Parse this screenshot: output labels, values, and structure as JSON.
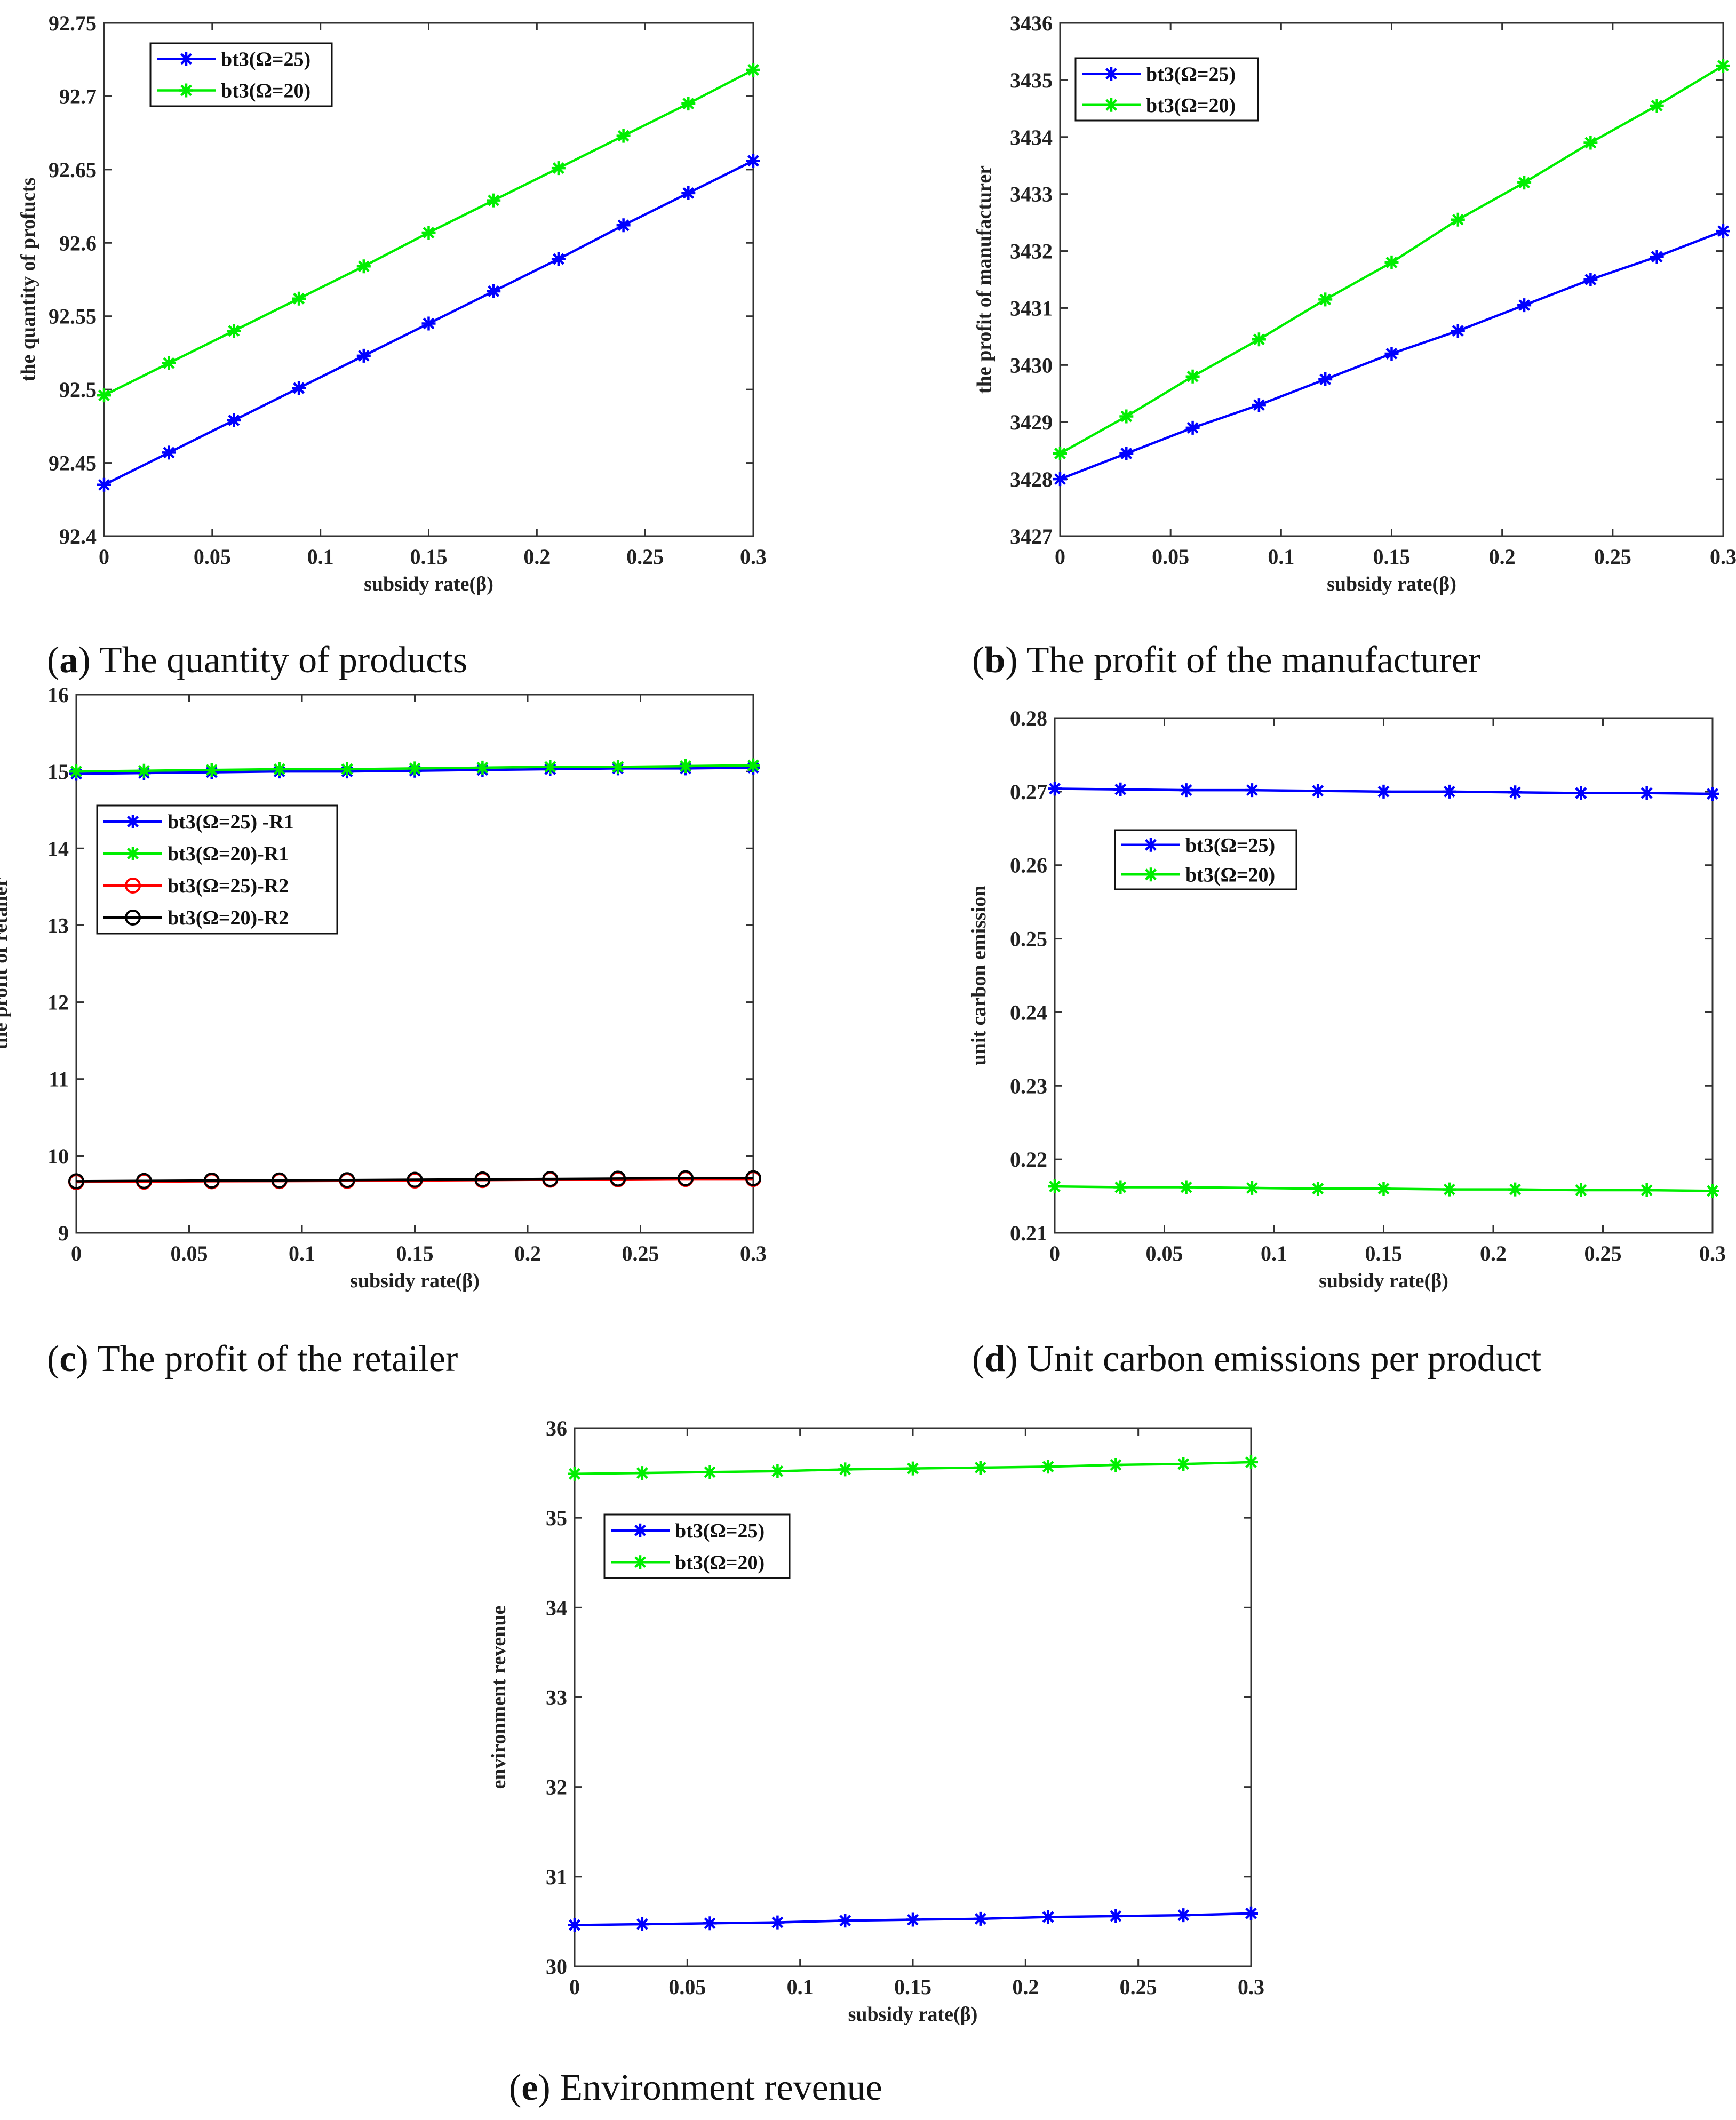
{
  "colors": {
    "blue": "#0000ff",
    "green": "#00ee00",
    "red": "#ff0000",
    "black": "#000000",
    "axis": "#333333"
  },
  "chart_data": [
    {
      "id": "a",
      "type": "line",
      "caption_letter": "a",
      "caption_text": "The quantity of products",
      "xlabel": "subsidy rate(β)",
      "ylabel": "the quantity of profucts",
      "x": [
        0,
        0.03,
        0.06,
        0.09,
        0.12,
        0.15,
        0.18,
        0.21,
        0.24,
        0.27,
        0.3
      ],
      "xlim": [
        0,
        0.3
      ],
      "ylim": [
        92.4,
        92.75
      ],
      "xticks": [
        0,
        0.05,
        0.1,
        0.15,
        0.2,
        0.25,
        0.3
      ],
      "xtick_labels": [
        "0",
        "0.05",
        "0.1",
        "0.15",
        "0.2",
        "0.25",
        "0.3"
      ],
      "yticks": [
        92.4,
        92.45,
        92.5,
        92.55,
        92.6,
        92.65,
        92.7,
        92.75
      ],
      "ytick_labels": [
        "92.4",
        "92.45",
        "92.5",
        "92.55",
        "92.6",
        "92.65",
        "92.7",
        "92.75"
      ],
      "legend_position": "top-left",
      "series": [
        {
          "name": "bt3(Ω=25)",
          "color": "blue",
          "marker": "star",
          "values": [
            92.435,
            92.457,
            92.479,
            92.501,
            92.523,
            92.545,
            92.567,
            92.589,
            92.612,
            92.634,
            92.656
          ]
        },
        {
          "name": "bt3(Ω=20)",
          "color": "green",
          "marker": "star",
          "values": [
            92.496,
            92.518,
            92.54,
            92.562,
            92.584,
            92.607,
            92.629,
            92.651,
            92.673,
            92.695,
            92.718
          ]
        }
      ]
    },
    {
      "id": "b",
      "type": "line",
      "caption_letter": "b",
      "caption_text": "The profit of the manufacturer",
      "xlabel": "subsidy rate(β)",
      "ylabel": "the profit of manufacturer",
      "x": [
        0,
        0.03,
        0.06,
        0.09,
        0.12,
        0.15,
        0.18,
        0.21,
        0.24,
        0.27,
        0.3
      ],
      "xlim": [
        0,
        0.3
      ],
      "ylim": [
        3427,
        3436
      ],
      "xticks": [
        0,
        0.05,
        0.1,
        0.15,
        0.2,
        0.25,
        0.3
      ],
      "xtick_labels": [
        "0",
        "0.05",
        "0.1",
        "0.15",
        "0.2",
        "0.25",
        "0.3"
      ],
      "yticks": [
        3427,
        3428,
        3429,
        3430,
        3431,
        3432,
        3433,
        3434,
        3435,
        3436
      ],
      "ytick_labels": [
        "3427",
        "3428",
        "3429",
        "3430",
        "3431",
        "3432",
        "3433",
        "3434",
        "3435",
        "3436"
      ],
      "legend_position": "top-left",
      "series": [
        {
          "name": "bt3(Ω=25)",
          "color": "blue",
          "marker": "star",
          "values": [
            3428.0,
            3428.45,
            3428.9,
            3429.3,
            3429.75,
            3430.2,
            3430.6,
            3431.05,
            3431.5,
            3431.9,
            3432.35
          ]
        },
        {
          "name": "bt3(Ω=20)",
          "color": "green",
          "marker": "star",
          "values": [
            3428.45,
            3429.1,
            3429.8,
            3430.45,
            3431.15,
            3431.8,
            3432.55,
            3433.2,
            3433.9,
            3434.55,
            3435.25
          ]
        }
      ]
    },
    {
      "id": "c",
      "type": "line",
      "caption_letter": "c",
      "caption_text": "The profit of the retailer",
      "xlabel": "subsidy rate(β)",
      "ylabel": "the profit of retailer",
      "x": [
        0,
        0.03,
        0.06,
        0.09,
        0.12,
        0.15,
        0.18,
        0.21,
        0.24,
        0.27,
        0.3
      ],
      "xlim": [
        0,
        0.3
      ],
      "ylim": [
        9,
        16
      ],
      "xticks": [
        0,
        0.05,
        0.1,
        0.15,
        0.2,
        0.25,
        0.3
      ],
      "xtick_labels": [
        "0",
        "0.05",
        "0.1",
        "0.15",
        "0.2",
        "0.25",
        "0.3"
      ],
      "yticks": [
        9,
        10,
        11,
        12,
        13,
        14,
        15,
        16
      ],
      "ytick_labels": [
        "9",
        "10",
        "11",
        "12",
        "13",
        "14",
        "15",
        "16"
      ],
      "legend_position": "upper-left",
      "series": [
        {
          "name": "bt3(Ω=25) -R1",
          "color": "blue",
          "marker": "star",
          "values": [
            14.97,
            14.98,
            14.99,
            15.0,
            15.0,
            15.01,
            15.02,
            15.03,
            15.04,
            15.04,
            15.05
          ]
        },
        {
          "name": "bt3(Ω=20)-R1",
          "color": "green",
          "marker": "star",
          "values": [
            15.0,
            15.01,
            15.02,
            15.03,
            15.03,
            15.04,
            15.05,
            15.06,
            15.06,
            15.07,
            15.08
          ]
        },
        {
          "name": "bt3(Ω=25)-R2",
          "color": "red",
          "marker": "circle",
          "values": [
            9.66,
            9.665,
            9.67,
            9.672,
            9.675,
            9.68,
            9.685,
            9.69,
            9.695,
            9.7,
            9.7
          ]
        },
        {
          "name": "bt3(Ω=20)-R2",
          "color": "black",
          "marker": "circle",
          "values": [
            9.67,
            9.675,
            9.68,
            9.682,
            9.685,
            9.69,
            9.695,
            9.7,
            9.705,
            9.71,
            9.71
          ]
        }
      ]
    },
    {
      "id": "d",
      "type": "line",
      "caption_letter": "d",
      "caption_text": "Unit carbon emissions per product",
      "xlabel": "subsidy rate(β)",
      "ylabel": "unit carbon emission",
      "x": [
        0,
        0.03,
        0.06,
        0.09,
        0.12,
        0.15,
        0.18,
        0.21,
        0.24,
        0.27,
        0.3
      ],
      "xlim": [
        0,
        0.3
      ],
      "ylim": [
        0.21,
        0.28
      ],
      "xticks": [
        0,
        0.05,
        0.1,
        0.15,
        0.2,
        0.25,
        0.3
      ],
      "xtick_labels": [
        "0",
        "0.05",
        "0.1",
        "0.15",
        "0.2",
        "0.25",
        "0.3"
      ],
      "yticks": [
        0.21,
        0.22,
        0.23,
        0.24,
        0.25,
        0.26,
        0.27,
        0.28
      ],
      "ytick_labels": [
        "0.21",
        "0.22",
        "0.23",
        "0.24",
        "0.25",
        "0.26",
        "0.27",
        "0.28"
      ],
      "legend_position": "upper-left",
      "series": [
        {
          "name": "bt3(Ω=25)",
          "color": "blue",
          "marker": "star",
          "values": [
            0.2704,
            0.2703,
            0.2702,
            0.2702,
            0.2701,
            0.27,
            0.27,
            0.2699,
            0.2698,
            0.2698,
            0.2697
          ]
        },
        {
          "name": "bt3(Ω=20)",
          "color": "green",
          "marker": "star",
          "values": [
            0.2163,
            0.2162,
            0.2162,
            0.2161,
            0.216,
            0.216,
            0.2159,
            0.2159,
            0.2158,
            0.2158,
            0.2157
          ]
        }
      ]
    },
    {
      "id": "e",
      "type": "line",
      "caption_letter": "e",
      "caption_text": "Environment revenue",
      "xlabel": "subsidy rate(β)",
      "ylabel": "environment revenue",
      "x": [
        0,
        0.03,
        0.06,
        0.09,
        0.12,
        0.15,
        0.18,
        0.21,
        0.24,
        0.27,
        0.3
      ],
      "xlim": [
        0,
        0.3
      ],
      "ylim": [
        30,
        36
      ],
      "xticks": [
        0,
        0.05,
        0.1,
        0.15,
        0.2,
        0.25,
        0.3
      ],
      "xtick_labels": [
        "0",
        "0.05",
        "0.1",
        "0.15",
        "0.2",
        "0.25",
        "0.3"
      ],
      "yticks": [
        30,
        31,
        32,
        33,
        34,
        35,
        36
      ],
      "ytick_labels": [
        "30",
        "31",
        "32",
        "33",
        "34",
        "35",
        "36"
      ],
      "legend_position": "upper-left",
      "series": [
        {
          "name": "bt3(Ω=25)",
          "color": "blue",
          "marker": "star",
          "values": [
            30.46,
            30.47,
            30.48,
            30.49,
            30.51,
            30.52,
            30.53,
            30.55,
            30.56,
            30.57,
            30.59
          ]
        },
        {
          "name": "bt3(Ω=20)",
          "color": "green",
          "marker": "star",
          "values": [
            35.49,
            35.5,
            35.51,
            35.52,
            35.54,
            35.55,
            35.56,
            35.57,
            35.59,
            35.6,
            35.62
          ]
        }
      ]
    }
  ]
}
